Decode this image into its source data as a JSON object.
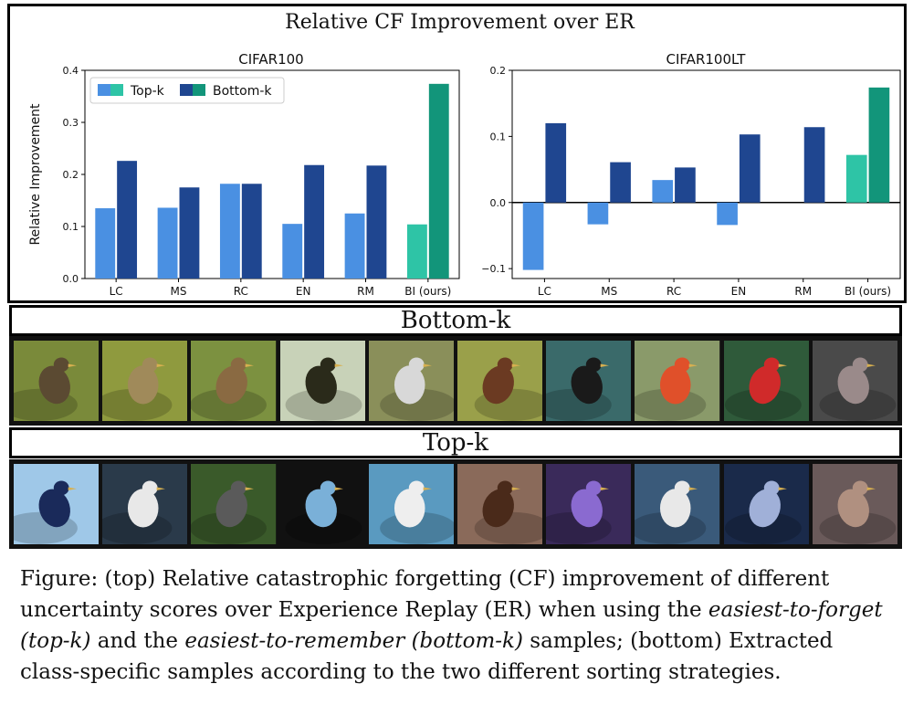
{
  "panel_title": "Relative CF Improvement over ER",
  "chart_data": [
    {
      "type": "bar",
      "title": "CIFAR100",
      "ylabel": "Relative Improvement",
      "xlabel": "",
      "categories": [
        "LC",
        "MS",
        "RC",
        "EN",
        "RM",
        "BI (ours)"
      ],
      "series": [
        {
          "name": "Top-k",
          "values": [
            0.135,
            0.136,
            0.182,
            0.105,
            0.125,
            0.104
          ]
        },
        {
          "name": "Bottom-k",
          "values": [
            0.226,
            0.175,
            0.182,
            0.218,
            0.217,
            0.374
          ]
        }
      ],
      "ylim": [
        0,
        0.4
      ],
      "yticks": [
        "0.0",
        "0.1",
        "0.2",
        "0.3",
        "0.4"
      ],
      "legend": "top-left",
      "colors": {
        "top_k": "#4a90e2",
        "bottom_k": "#1f4690",
        "ours_top_k": "#2ec4a6",
        "ours_bottom_k": "#12957a"
      }
    },
    {
      "type": "bar",
      "title": "CIFAR100LT",
      "ylabel": "",
      "xlabel": "",
      "categories": [
        "LC",
        "MS",
        "RC",
        "EN",
        "RM",
        "BI (ours)"
      ],
      "series": [
        {
          "name": "Top-k",
          "values": [
            -0.102,
            -0.033,
            0.034,
            -0.034,
            0.0,
            0.072
          ]
        },
        {
          "name": "Bottom-k",
          "values": [
            0.12,
            0.061,
            0.053,
            0.103,
            0.114,
            0.174
          ]
        }
      ],
      "ylim": [
        -0.115,
        0.2
      ],
      "yticks": [
        "0.2",
        "0.1",
        "0.0",
        "−0.1"
      ],
      "legend": "none",
      "colors": {
        "top_k": "#4a90e2",
        "bottom_k": "#1f4690",
        "ours_top_k": "#2ec4a6",
        "ours_bottom_k": "#12957a"
      }
    }
  ],
  "legend_labels": [
    "Top-k",
    "Bottom-k"
  ],
  "bottom_strip": {
    "label": "Bottom-k",
    "images": [
      {
        "icon": "bird-photo",
        "bg": "#7a8a3a",
        "fg": "#5b4a32"
      },
      {
        "icon": "bird-photo",
        "bg": "#8f9a3e",
        "fg": "#a08a5a"
      },
      {
        "icon": "bird-photo",
        "bg": "#7c9140",
        "fg": "#8a6a42"
      },
      {
        "icon": "bird-photo",
        "bg": "#c8d2b8",
        "fg": "#2a2a1a"
      },
      {
        "icon": "bird-photo",
        "bg": "#8a8f5a",
        "fg": "#d8d8d8"
      },
      {
        "icon": "bird-photo",
        "bg": "#9aa04a",
        "fg": "#6b3a22"
      },
      {
        "icon": "bird-photo",
        "bg": "#3a6a6a",
        "fg": "#1a1a1a"
      },
      {
        "icon": "bird-photo",
        "bg": "#8a9a6a",
        "fg": "#e0502a"
      },
      {
        "icon": "bird-photo",
        "bg": "#2f5a3a",
        "fg": "#d02a2a"
      },
      {
        "icon": "bird-photo",
        "bg": "#4a4a4a",
        "fg": "#9a8a8a"
      }
    ]
  },
  "top_strip": {
    "label": "Top-k",
    "images": [
      {
        "icon": "bird-photo",
        "bg": "#9fc8e8",
        "fg": "#1a2a5a"
      },
      {
        "icon": "bird-photo",
        "bg": "#2a3a4a",
        "fg": "#e8e8e8"
      },
      {
        "icon": "bird-photo",
        "bg": "#3a5a2a",
        "fg": "#5a5a5a"
      },
      {
        "icon": "bird-photo",
        "bg": "#111111",
        "fg": "#7ab0d8"
      },
      {
        "icon": "bird-photo",
        "bg": "#5a9ac0",
        "fg": "#eeeeee"
      },
      {
        "icon": "bird-photo",
        "bg": "#8a6a5a",
        "fg": "#4a2a1a"
      },
      {
        "icon": "bird-photo",
        "bg": "#3a2a5a",
        "fg": "#8a6ad0"
      },
      {
        "icon": "bird-photo",
        "bg": "#3a5a7a",
        "fg": "#e8e8e8"
      },
      {
        "icon": "bird-photo",
        "bg": "#1a2a4a",
        "fg": "#a0b0d8"
      },
      {
        "icon": "bird-photo",
        "bg": "#6a5a5a",
        "fg": "#b09080"
      }
    ]
  },
  "caption": {
    "part1": "Figure: (top) Relative catastrophic forgetting (CF) improvement of different uncertainty scores over Experience Replay (ER) when using the ",
    "em1": "easiest-to-forget (top-k)",
    "part2": " and the ",
    "em2": "easiest-to-remember (bottom-k)",
    "part3": " samples; (bottom) Extracted class-specific samples according to the two different sorting strategies."
  }
}
